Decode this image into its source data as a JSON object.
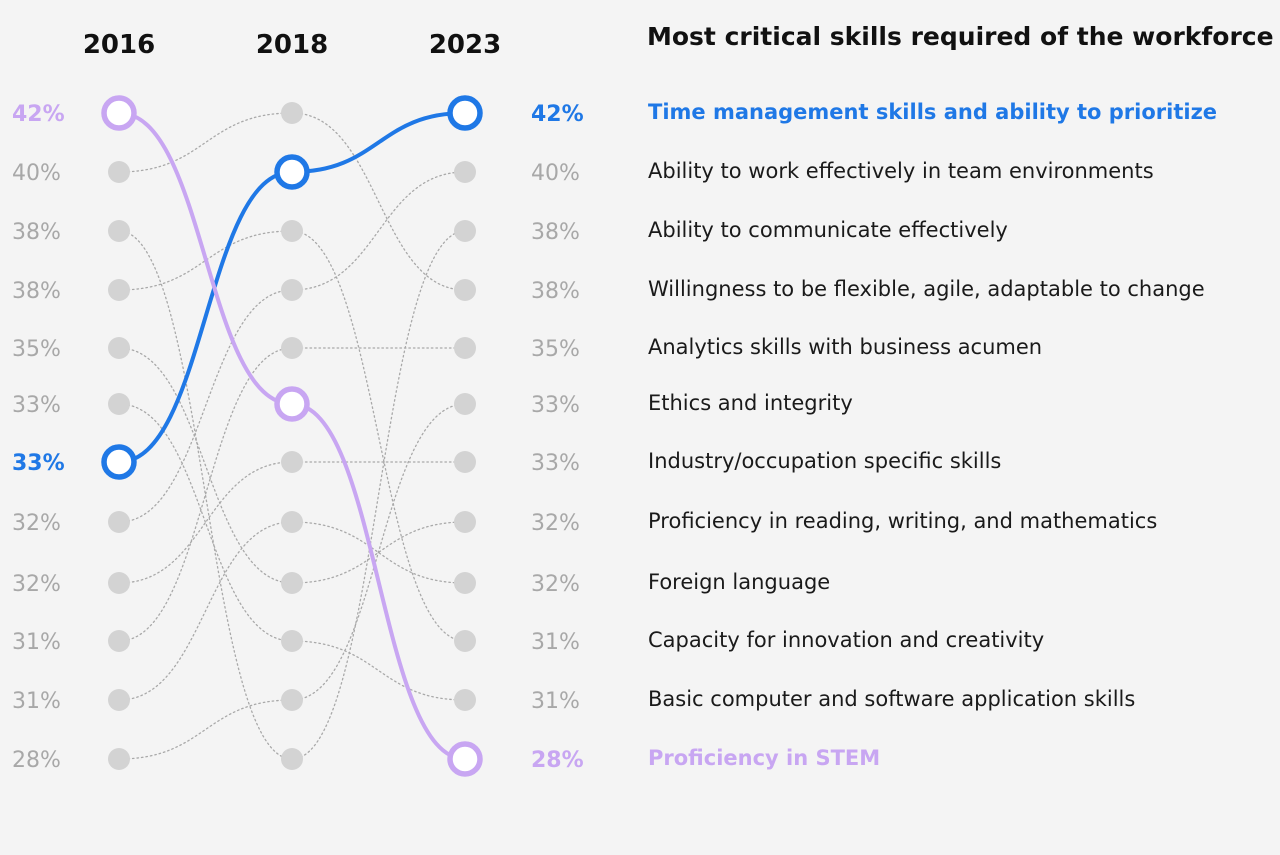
{
  "title": "Most critical skills required of the workforce",
  "colors": {
    "background": "#f4f4f4",
    "dot": "#d3d3d3",
    "connector": "#a9a9a9",
    "muted_text": "#a8a8a8",
    "highlight_blue": "#1f78e6",
    "highlight_purple": "#c8a6f2"
  },
  "chart_data": {
    "type": "slopegraph",
    "years": [
      "2016",
      "2018",
      "2023"
    ],
    "rank_percentages_2016": [
      "42%",
      "40%",
      "38%",
      "38%",
      "35%",
      "33%",
      "33%",
      "32%",
      "32%",
      "31%",
      "31%",
      "28%"
    ],
    "rank_percentages_2023": [
      "42%",
      "40%",
      "38%",
      "38%",
      "35%",
      "33%",
      "33%",
      "32%",
      "32%",
      "31%",
      "31%",
      "28%"
    ],
    "skills": [
      {
        "name": "Time management skills and ability to prioritize",
        "ranks": [
          7,
          2,
          1
        ],
        "highlight": "blue"
      },
      {
        "name": "Ability to work effectively in team environments",
        "ranks": [
          8,
          4,
          2
        ],
        "highlight": null
      },
      {
        "name": "Ability to communicate effectively",
        "ranks": [
          3,
          12,
          3
        ],
        "highlight": null
      },
      {
        "name": "Willingness to be flexible, agile, adaptable to change",
        "ranks": [
          2,
          1,
          4
        ],
        "highlight": null
      },
      {
        "name": "Analytics skills with business acumen",
        "ranks": [
          10,
          5,
          5
        ],
        "highlight": null
      },
      {
        "name": "Ethics and integrity",
        "ranks": [
          12,
          11,
          6
        ],
        "highlight": null
      },
      {
        "name": "Industry/occupation specific skills",
        "ranks": [
          9,
          7,
          7
        ],
        "highlight": null
      },
      {
        "name": "Proficiency in reading, writing, and mathematics",
        "ranks": [
          5,
          9,
          8
        ],
        "highlight": null
      },
      {
        "name": "Foreign language",
        "ranks": [
          11,
          8,
          9
        ],
        "highlight": null
      },
      {
        "name": "Capacity for innovation and creativity",
        "ranks": [
          4,
          3,
          10
        ],
        "highlight": null
      },
      {
        "name": "Basic computer and software application skills",
        "ranks": [
          6,
          10,
          11
        ],
        "highlight": null
      },
      {
        "name": "Proficiency in STEM",
        "ranks": [
          1,
          6,
          12
        ],
        "highlight": "purple"
      }
    ]
  }
}
